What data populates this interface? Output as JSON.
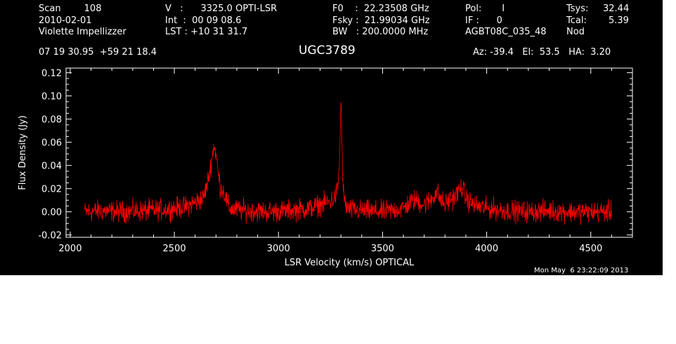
{
  "header": {
    "col1": [
      "Scan        108",
      "2010-02-01",
      "Violette Impellizzer"
    ],
    "col2": [
      "V   :      3325.0 OPTI-LSR",
      "Int  :  00 09 08.6",
      "LST : +10 31 31.7"
    ],
    "col3": [
      "F0    :  22.23508 GHz",
      "Fsky :  21.99034 GHz",
      "BW   : 200.0000 MHz"
    ],
    "col4": [
      "Pol:       I",
      "IF :      0",
      "AGBT08C_035_48"
    ],
    "col5": [
      "Tsys:",
      "Tcal:",
      "Nod"
    ],
    "col6": [
      "32.44",
      "5.39",
      ""
    ],
    "coords": "07 19 30.95  +59 21 18.4",
    "source": "UGC3789",
    "azelha": "Az: -39.4   El:  53.5   HA:  3.20"
  },
  "footer": {
    "timestamp": "Mon May  6 23:22:09 2013"
  },
  "chart_data": {
    "type": "line",
    "title": "UGC3789",
    "xlabel": "LSR Velocity (km/s) OPTICAL",
    "ylabel": "Flux Density (Jy)",
    "xlim": [
      1980,
      4700
    ],
    "ylim": [
      -0.022,
      0.124
    ],
    "xticks": [
      "2000",
      "2500",
      "3000",
      "3500",
      "4000",
      "4500"
    ],
    "xtick_values": [
      2000,
      2500,
      3000,
      3500,
      4000,
      4500
    ],
    "yticks": [
      "-0.02",
      "0.00",
      "0.02",
      "0.04",
      "0.06",
      "0.08",
      "0.10",
      "0.12"
    ],
    "ytick_values": [
      -0.02,
      0.0,
      0.02,
      0.04,
      0.06,
      0.08,
      0.1,
      0.12
    ],
    "series_color": "#ff0000",
    "axis_color": "#ffffff",
    "background": "#000000",
    "series": [
      {
        "x": [
          2070,
          2150,
          2250,
          2350,
          2450,
          2550,
          2600,
          2640,
          2660,
          2680,
          2690,
          2700,
          2710,
          2720,
          2735,
          2750,
          2760,
          2780,
          2850,
          2950,
          3050,
          3150,
          3200,
          3240,
          3270,
          3285,
          3295,
          3300,
          3305,
          3310,
          3320,
          3340,
          3400,
          3500,
          3600,
          3640,
          3660,
          3700,
          3740,
          3760,
          3780,
          3800,
          3820,
          3840,
          3860,
          3880,
          3900,
          3920,
          3950,
          4000,
          4100,
          4200,
          4300,
          4400,
          4500,
          4600
        ],
        "y": [
          0.0,
          0.001,
          0.0,
          0.001,
          0.002,
          0.004,
          0.008,
          0.012,
          0.025,
          0.045,
          0.058,
          0.05,
          0.035,
          0.022,
          0.018,
          0.01,
          0.004,
          0.002,
          0.001,
          0.0,
          0.001,
          0.003,
          0.006,
          0.008,
          0.012,
          0.02,
          0.05,
          0.1,
          0.06,
          0.02,
          0.006,
          0.002,
          0.001,
          0.0,
          0.003,
          0.009,
          0.01,
          0.006,
          0.012,
          0.018,
          0.01,
          0.006,
          0.01,
          0.012,
          0.016,
          0.022,
          0.012,
          0.008,
          0.005,
          0.003,
          0.001,
          0.0,
          0.001,
          0.0,
          0.0,
          0.0
        ]
      }
    ]
  }
}
